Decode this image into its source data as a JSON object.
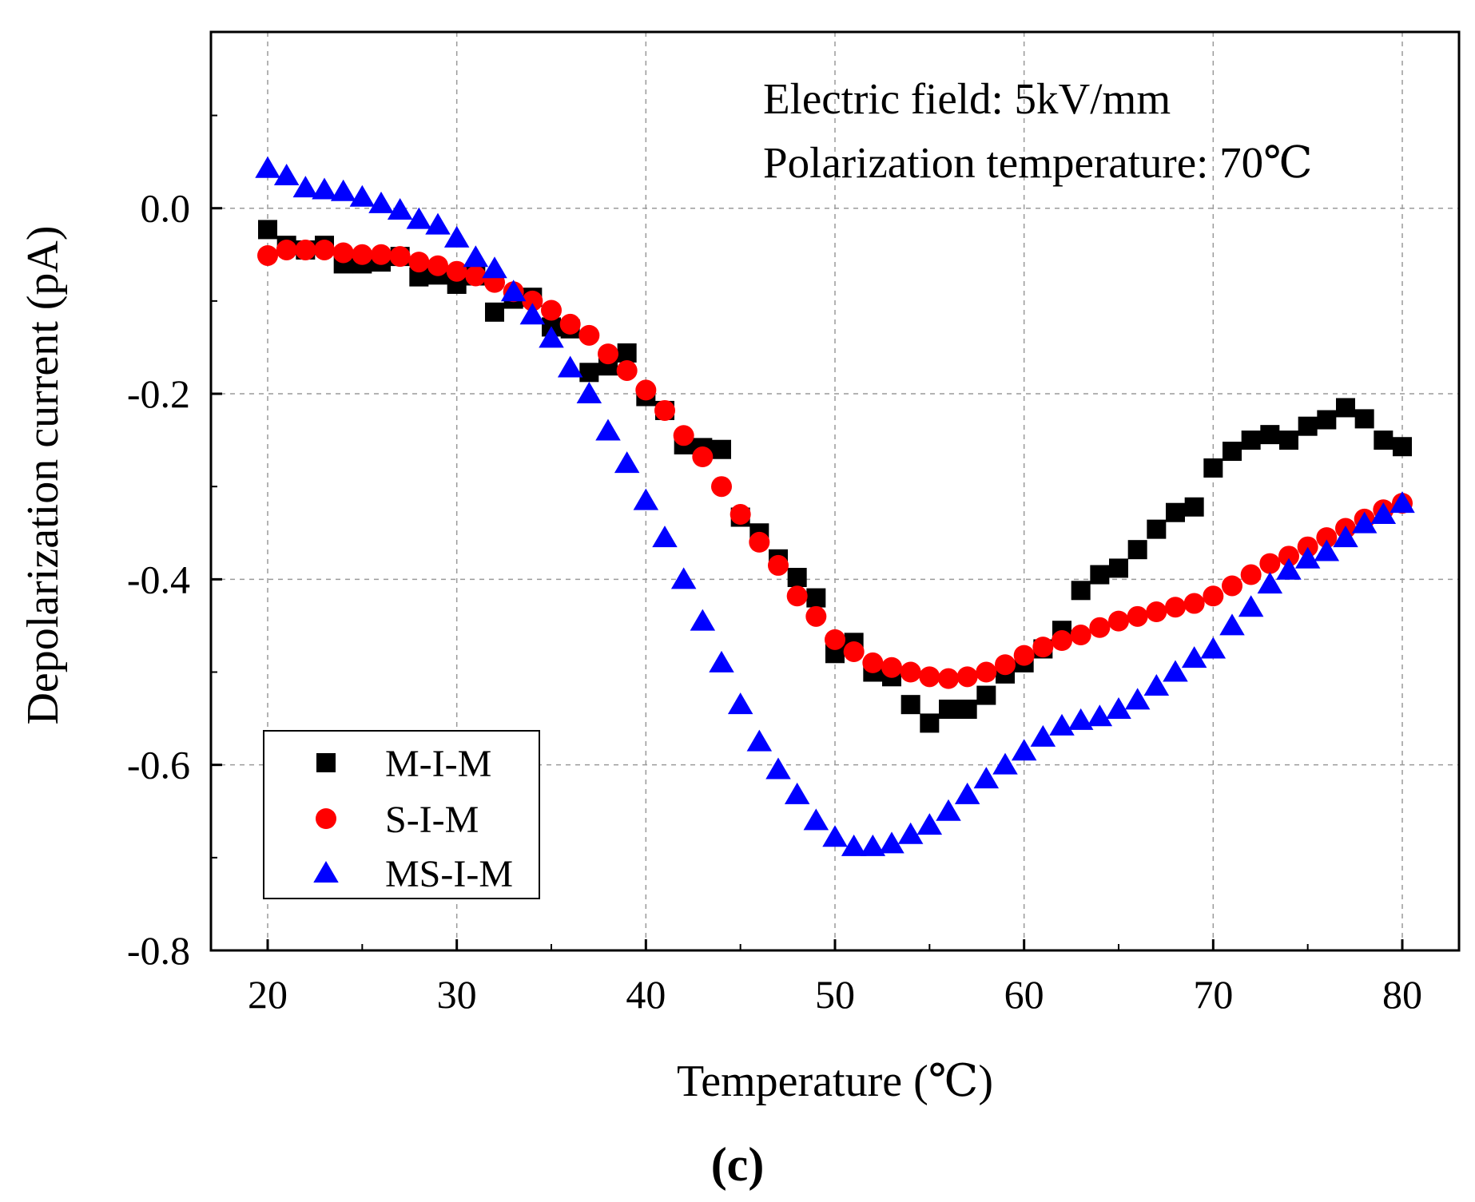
{
  "chart_data": {
    "type": "scatter",
    "xlabel": "Temperature (℃)",
    "ylabel": "Depolarization current (pA)",
    "xlim": [
      17,
      83
    ],
    "ylim": [
      -0.8,
      0.19
    ],
    "xticks": [
      20,
      30,
      40,
      50,
      60,
      70,
      80
    ],
    "yticks": [
      0.0,
      -0.2,
      -0.4,
      -0.6,
      -0.8
    ],
    "ytick_labels": [
      "0.0",
      "-0.2",
      "-0.4",
      "-0.6",
      "-0.8"
    ],
    "grid": true,
    "legend_position": "bottom-left",
    "annotations": [
      "Electric field: 5kV/mm",
      "Polarization temperature: 70℃"
    ],
    "caption": "(c)",
    "series": [
      {
        "name": "M-I-M",
        "marker": "square",
        "color": "#000000",
        "x": [
          20,
          21,
          22,
          23,
          24,
          25,
          26,
          27,
          28,
          29,
          30,
          31,
          32,
          33,
          34,
          35,
          36,
          37,
          38,
          39,
          40,
          41,
          42,
          43,
          44,
          45,
          46,
          47,
          48,
          49,
          50,
          51,
          52,
          53,
          54,
          55,
          56,
          57,
          58,
          59,
          60,
          61,
          62,
          63,
          64,
          65,
          66,
          67,
          68,
          69,
          70,
          71,
          72,
          73,
          74,
          75,
          76,
          77,
          78,
          79,
          80
        ],
        "y": [
          -0.023,
          -0.04,
          -0.045,
          -0.04,
          -0.06,
          -0.06,
          -0.058,
          -0.052,
          -0.074,
          -0.072,
          -0.082,
          -0.073,
          -0.112,
          -0.098,
          -0.096,
          -0.128,
          -0.13,
          -0.177,
          -0.17,
          -0.156,
          -0.203,
          -0.218,
          -0.255,
          -0.258,
          -0.26,
          -0.333,
          -0.35,
          -0.378,
          -0.398,
          -0.42,
          -0.48,
          -0.468,
          -0.5,
          -0.505,
          -0.535,
          -0.555,
          -0.54,
          -0.54,
          -0.525,
          -0.502,
          -0.49,
          -0.475,
          -0.455,
          -0.412,
          -0.395,
          -0.388,
          -0.368,
          -0.346,
          -0.328,
          -0.322,
          -0.28,
          -0.262,
          -0.25,
          -0.244,
          -0.25,
          -0.235,
          -0.228,
          -0.215,
          -0.227,
          -0.25,
          -0.257
        ]
      },
      {
        "name": "S-I-M",
        "marker": "circle",
        "color": "#ff0000",
        "x": [
          20,
          21,
          22,
          23,
          24,
          25,
          26,
          27,
          28,
          29,
          30,
          31,
          32,
          33,
          34,
          35,
          36,
          37,
          38,
          39,
          40,
          41,
          42,
          43,
          44,
          45,
          46,
          47,
          48,
          49,
          50,
          51,
          52,
          53,
          54,
          55,
          56,
          57,
          58,
          59,
          60,
          61,
          62,
          63,
          64,
          65,
          66,
          67,
          68,
          69,
          70,
          71,
          72,
          73,
          74,
          75,
          76,
          77,
          78,
          79,
          80
        ],
        "y": [
          -0.051,
          -0.045,
          -0.045,
          -0.045,
          -0.048,
          -0.05,
          -0.05,
          -0.052,
          -0.058,
          -0.062,
          -0.068,
          -0.073,
          -0.08,
          -0.09,
          -0.1,
          -0.11,
          -0.125,
          -0.137,
          -0.157,
          -0.175,
          -0.196,
          -0.218,
          -0.245,
          -0.268,
          -0.3,
          -0.33,
          -0.36,
          -0.385,
          -0.418,
          -0.44,
          -0.465,
          -0.478,
          -0.49,
          -0.495,
          -0.5,
          -0.505,
          -0.507,
          -0.505,
          -0.5,
          -0.492,
          -0.482,
          -0.473,
          -0.466,
          -0.46,
          -0.452,
          -0.445,
          -0.44,
          -0.435,
          -0.43,
          -0.426,
          -0.418,
          -0.407,
          -0.395,
          -0.383,
          -0.375,
          -0.365,
          -0.355,
          -0.345,
          -0.335,
          -0.325,
          -0.318
        ]
      },
      {
        "name": "MS-I-M",
        "marker": "triangle",
        "color": "#0000ff",
        "x": [
          20,
          21,
          22,
          23,
          24,
          25,
          26,
          27,
          28,
          29,
          30,
          31,
          32,
          33,
          34,
          35,
          36,
          37,
          38,
          39,
          40,
          41,
          42,
          43,
          44,
          45,
          46,
          47,
          48,
          49,
          50,
          51,
          52,
          53,
          54,
          55,
          56,
          57,
          58,
          59,
          60,
          61,
          62,
          63,
          64,
          65,
          66,
          67,
          68,
          69,
          70,
          71,
          72,
          73,
          74,
          75,
          76,
          77,
          78,
          79,
          80
        ],
        "y": [
          0.043,
          0.035,
          0.022,
          0.02,
          0.018,
          0.012,
          0.005,
          -0.002,
          -0.012,
          -0.018,
          -0.032,
          -0.053,
          -0.065,
          -0.09,
          -0.115,
          -0.14,
          -0.172,
          -0.2,
          -0.24,
          -0.275,
          -0.315,
          -0.355,
          -0.4,
          -0.445,
          -0.49,
          -0.535,
          -0.575,
          -0.605,
          -0.632,
          -0.66,
          -0.678,
          -0.688,
          -0.688,
          -0.685,
          -0.675,
          -0.665,
          -0.65,
          -0.632,
          -0.615,
          -0.6,
          -0.585,
          -0.57,
          -0.558,
          -0.552,
          -0.548,
          -0.54,
          -0.53,
          -0.515,
          -0.5,
          -0.485,
          -0.475,
          -0.45,
          -0.43,
          -0.405,
          -0.39,
          -0.378,
          -0.37,
          -0.355,
          -0.34,
          -0.33,
          -0.318
        ]
      }
    ]
  }
}
